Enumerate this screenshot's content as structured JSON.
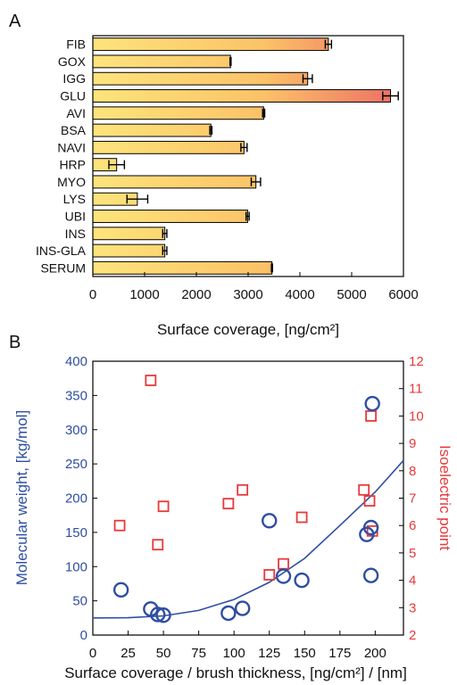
{
  "chart_data": [
    {
      "panel_label": "A",
      "type": "bar",
      "orientation": "horizontal",
      "categories": [
        "FIB",
        "GOX",
        "IGG",
        "GLU",
        "AVI",
        "BSA",
        "NAVI",
        "HRP",
        "MYO",
        "LYS",
        "UBI",
        "INS",
        "INS-GLA",
        "SERUM"
      ],
      "values": [
        4550,
        2660,
        4150,
        5750,
        3300,
        2280,
        2920,
        460,
        3150,
        860,
        2990,
        1390,
        1390,
        3460
      ],
      "errors": [
        60,
        10,
        90,
        150,
        20,
        20,
        60,
        150,
        90,
        200,
        30,
        40,
        40,
        10
      ],
      "xlabel": "Surface coverage, [ng/cm²]",
      "xlim": [
        0,
        6000
      ],
      "xticks": [
        "0",
        "1000",
        "2000",
        "3000",
        "4000",
        "5000",
        "6000"
      ],
      "colors": {
        "low": "#fde47c",
        "high": "#ec6b66",
        "edge": "#000000"
      }
    },
    {
      "panel_label": "B",
      "type": "scatter",
      "xlabel": "Surface coverage / brush thickness, [ng/cm²] / [nm]",
      "ylabel_left": "Molecular weight, [kg/mol]",
      "ylabel_right": "Isoelectric point",
      "xlim": [
        0,
        220
      ],
      "ylim_left": [
        0,
        400
      ],
      "ylim_right": [
        2,
        12
      ],
      "xticks": [
        "0",
        "25",
        "50",
        "75",
        "100",
        "125",
        "150",
        "175",
        "200"
      ],
      "yticks_left": [
        "0",
        "50",
        "100",
        "150",
        "200",
        "250",
        "300",
        "350",
        "400"
      ],
      "yticks_right": [
        "2",
        "3",
        "4",
        "5",
        "6",
        "7",
        "8",
        "9",
        "10",
        "11",
        "12"
      ],
      "series": [
        {
          "axis": "left",
          "marker": "circle",
          "color": "#2f4ea3",
          "points": [
            [
              20,
              66
            ],
            [
              41,
              38
            ],
            [
              46,
              30
            ],
            [
              50,
              29
            ],
            [
              96,
              32
            ],
            [
              106,
              39
            ],
            [
              125,
              167
            ],
            [
              135,
              86
            ],
            [
              148,
              80
            ],
            [
              194,
              147
            ],
            [
              197,
              157
            ],
            [
              197,
              87
            ],
            [
              198,
              338
            ]
          ]
        },
        {
          "axis": "right",
          "marker": "square",
          "color": "#e8393a",
          "points": [
            [
              19,
              6.0
            ],
            [
              41,
              11.3
            ],
            [
              46,
              5.3
            ],
            [
              50,
              6.7
            ],
            [
              96,
              6.8
            ],
            [
              106,
              7.3
            ],
            [
              125,
              4.2
            ],
            [
              135,
              4.6
            ],
            [
              148,
              6.3
            ],
            [
              192,
              7.3
            ],
            [
              196,
              6.9
            ],
            [
              197,
              10.0
            ],
            [
              198,
              5.8
            ]
          ]
        },
        {
          "axis": "left",
          "marker": "line",
          "color": "#2f4ea3",
          "points": [
            [
              0,
              25
            ],
            [
              25,
              25.3
            ],
            [
              50,
              28
            ],
            [
              75,
              36
            ],
            [
              100,
              52
            ],
            [
              125,
              77
            ],
            [
              150,
              112
            ],
            [
              175,
              160
            ],
            [
              200,
              209
            ],
            [
              220,
              255
            ]
          ]
        }
      ]
    }
  ]
}
